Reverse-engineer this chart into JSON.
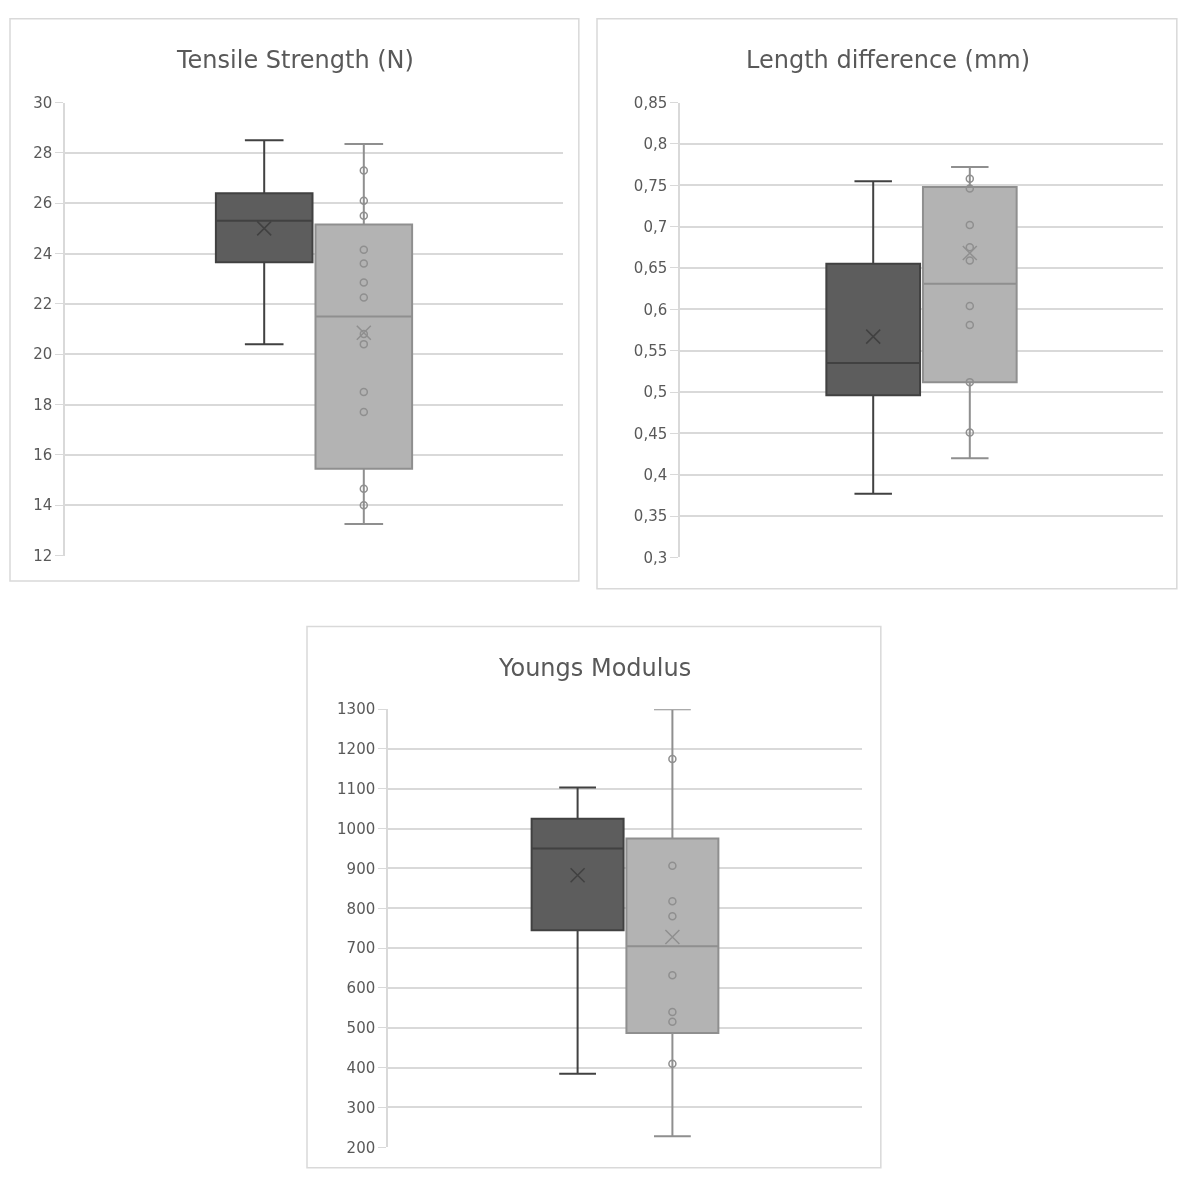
{
  "chart_data": [
    {
      "type": "box",
      "title": "Tensile Strength (N)",
      "categories": [
        null
      ],
      "grid": "y",
      "tick_labels": "y",
      "ylim": [
        12,
        30
      ],
      "yticks": [
        12,
        14,
        16,
        18,
        20,
        22,
        24,
        26,
        28,
        30
      ],
      "series": [
        {
          "color": "#5d5d5d",
          "boxes": [
            {
              "low": 20.4,
              "q1": 23.65,
              "median": 25.3,
              "q3": 26.4,
              "high": 28.5,
              "mean": 25.0
            }
          ]
        },
        {
          "color": "#b3b3b3",
          "boxes": [
            {
              "low": 13.25,
              "q1": 15.45,
              "median": 21.5,
              "q3": 25.15,
              "high": 28.35,
              "mean": 20.85,
              "outliers": [
                27.3,
                26.1,
                25.5,
                24.15,
                23.6,
                22.85,
                22.25,
                20.8,
                20.4,
                18.5,
                17.7,
                14.65,
                14.0
              ]
            }
          ]
        }
      ]
    },
    {
      "type": "box",
      "title": "Length difference (mm)",
      "categories": [
        null
      ],
      "grid": "y",
      "tick_labels": "y",
      "ylim": [
        0.3,
        0.85
      ],
      "yticks": [
        {
          "value": 0.3,
          "label": "0,3"
        },
        {
          "value": 0.35,
          "label": "0,35"
        },
        {
          "value": 0.4,
          "label": "0,4"
        },
        {
          "value": 0.45,
          "label": "0,45"
        },
        {
          "value": 0.5,
          "label": "0,5"
        },
        {
          "value": 0.55,
          "label": "0,55"
        },
        {
          "value": 0.6,
          "label": "0,6"
        },
        {
          "value": 0.65,
          "label": "0,65"
        },
        {
          "value": 0.7,
          "label": "0,7"
        },
        {
          "value": 0.75,
          "label": "0,75"
        },
        {
          "value": 0.8,
          "label": "0,8"
        },
        {
          "value": 0.85,
          "label": "0,85"
        }
      ],
      "series": [
        {
          "color": "#5d5d5d",
          "boxes": [
            {
              "low": 0.377,
              "q1": 0.496,
              "median": 0.535,
              "q3": 0.655,
              "high": 0.755,
              "mean": 0.567
            }
          ]
        },
        {
          "color": "#b3b3b3",
          "boxes": [
            {
              "low": 0.42,
              "q1": 0.512,
              "median": 0.631,
              "q3": 0.748,
              "high": 0.772,
              "mean": 0.668,
              "outliers": [
                0.758,
                0.746,
                0.702,
                0.675,
                0.659,
                0.604,
                0.581,
                0.512,
                0.451
              ]
            }
          ]
        }
      ]
    },
    {
      "type": "box",
      "title": "Youngs Modulus",
      "categories": [
        null
      ],
      "grid": "y",
      "tick_labels": "y",
      "ylim": [
        200,
        1300
      ],
      "yticks": [
        200,
        300,
        400,
        500,
        600,
        700,
        800,
        900,
        1000,
        1100,
        1200,
        1300
      ],
      "series": [
        {
          "color": "#5d5d5d",
          "boxes": [
            {
              "low": 385,
              "q1": 745,
              "median": 950,
              "q3": 1025,
              "high": 1103,
              "mean": 883
            }
          ]
        },
        {
          "color": "#b3b3b3",
          "boxes": [
            {
              "low": 228,
              "q1": 487,
              "median": 705,
              "q3": 975,
              "high": 1300,
              "mean": 728,
              "outliers": [
                1175,
                907,
                818,
                780,
                632,
                540,
                515,
                410
              ]
            }
          ]
        }
      ]
    }
  ]
}
